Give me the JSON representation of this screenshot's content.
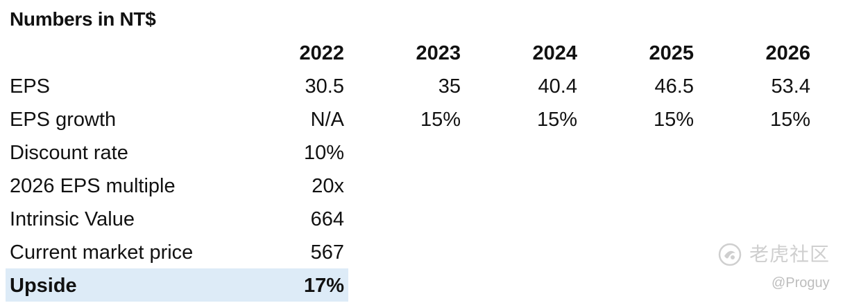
{
  "title": "Numbers in NT$",
  "years": [
    "2022",
    "2023",
    "2024",
    "2025",
    "2026"
  ],
  "rows": [
    {
      "label": "EPS",
      "values": [
        "30.5",
        "35",
        "40.4",
        "46.5",
        "53.4"
      ]
    },
    {
      "label": "EPS growth",
      "values": [
        "N/A",
        "15%",
        "15%",
        "15%",
        "15%"
      ]
    },
    {
      "label": "Discount rate",
      "values": [
        "10%"
      ]
    },
    {
      "label": "2026 EPS multiple",
      "values": [
        "20x"
      ]
    },
    {
      "label": "Intrinsic Value",
      "values": [
        "664"
      ]
    },
    {
      "label": "Current market price",
      "values": [
        "567"
      ]
    }
  ],
  "upside": {
    "label": "Upside",
    "value": "17%"
  },
  "colors": {
    "highlight": "#ddebf7"
  },
  "watermark": {
    "brand": "老虎社区",
    "handle": "@Proguy",
    "icon": "tiger-community-logo-icon"
  }
}
